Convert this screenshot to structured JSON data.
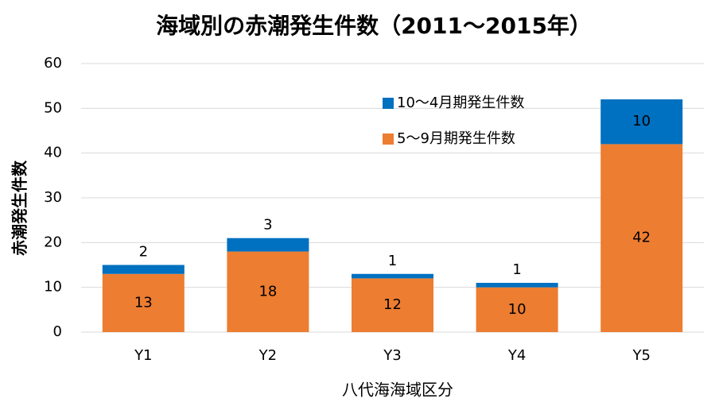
{
  "chart_data": {
    "type": "stacked_bar",
    "title": "海域別の赤潮発生件数（2011～2015年）",
    "x_label": "八代海海域区分",
    "y_label": "赤潮発生件数",
    "categories": [
      "Y1",
      "Y2",
      "Y3",
      "Y4",
      "Y5"
    ],
    "series": [
      {
        "name": "5～9月期発生件数",
        "color": "#ED7D31",
        "values": [
          13,
          18,
          12,
          10,
          42
        ]
      },
      {
        "name": "10～4月期発生件数",
        "color": "#0070C0",
        "values": [
          2,
          3,
          1,
          1,
          10
        ]
      }
    ],
    "ylim": [
      0,
      60
    ],
    "yticks": [
      0,
      10,
      20,
      30,
      40,
      50,
      60
    ],
    "grid": true,
    "legend": "top-right"
  }
}
